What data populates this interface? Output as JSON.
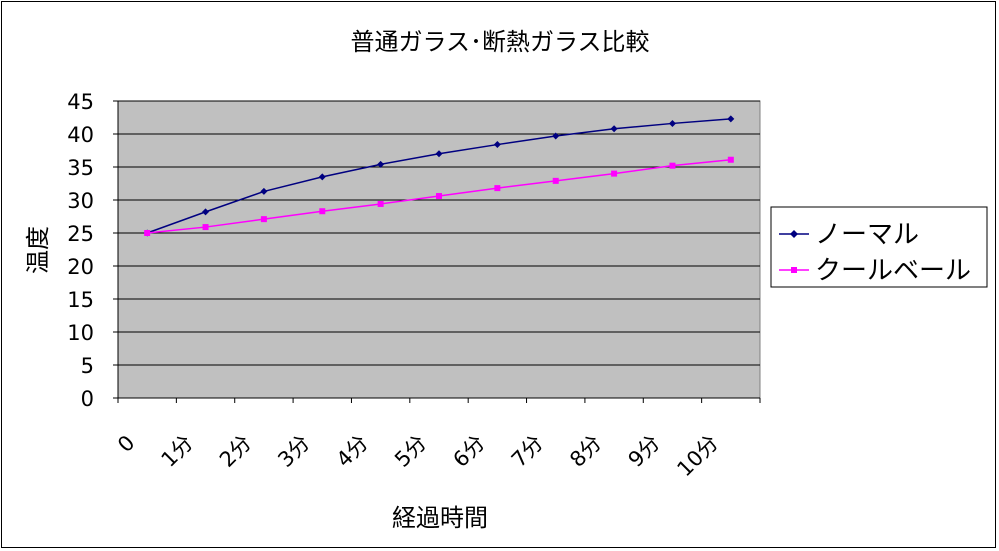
{
  "chart_data": {
    "type": "line",
    "title": "普通ガラス･断熱ガラス比較",
    "xlabel": "経過時間",
    "ylabel": "温度",
    "categories": [
      "0",
      "1分",
      "2分",
      "3分",
      "4分",
      "5分",
      "6分",
      "7分",
      "8分",
      "9分",
      "10分"
    ],
    "ylim": [
      0,
      45
    ],
    "yticks": [
      0,
      5,
      10,
      15,
      20,
      25,
      30,
      35,
      40,
      45
    ],
    "grid": true,
    "legend_position": "right",
    "series": [
      {
        "name": "ノーマル",
        "color": "#000080",
        "marker": "diamond",
        "values": [
          25,
          28.2,
          31.3,
          33.5,
          35.4,
          37.0,
          38.4,
          39.7,
          40.8,
          41.6,
          42.3
        ]
      },
      {
        "name": "クールベール",
        "color": "#ff00ff",
        "marker": "square",
        "values": [
          25,
          25.9,
          27.1,
          28.3,
          29.4,
          30.6,
          31.8,
          32.9,
          34.0,
          35.2,
          36.1
        ]
      }
    ],
    "plot_background": "#c0c0c0",
    "grid_color": "#000000"
  }
}
